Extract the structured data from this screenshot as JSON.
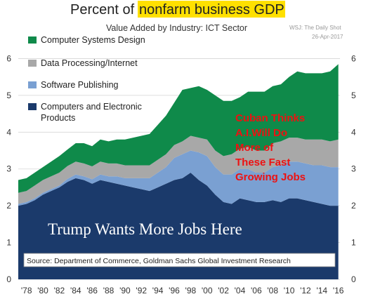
{
  "chart_data": {
    "type": "area",
    "stacked": true,
    "title_prefix": "Percent of",
    "title_highlight": "nonfarm business GDP",
    "subtitle": "Value Added by Industry: ICT Sector",
    "credit": [
      "WSJ: The Daily Shot",
      "26-Apr-2017"
    ],
    "x": [
      1977,
      1978,
      1979,
      1980,
      1981,
      1982,
      1983,
      1984,
      1985,
      1986,
      1987,
      1988,
      1989,
      1990,
      1991,
      1992,
      1993,
      1994,
      1995,
      1996,
      1997,
      1998,
      1999,
      2000,
      2001,
      2002,
      2003,
      2004,
      2005,
      2006,
      2007,
      2008,
      2009,
      2010,
      2011,
      2012,
      2013,
      2014,
      2015,
      2016
    ],
    "x_tick_labels": [
      "'78",
      "'80",
      "'82",
      "'84",
      "'86",
      "'88",
      "'90",
      "'92",
      "'94",
      "'96",
      "'98",
      "'00",
      "'02",
      "'04",
      "'06",
      "'08",
      "'10",
      "'12",
      "'14",
      "'16"
    ],
    "x_tick_values": [
      1978,
      1980,
      1982,
      1984,
      1986,
      1988,
      1990,
      1992,
      1994,
      1996,
      1998,
      2000,
      2002,
      2004,
      2006,
      2008,
      2010,
      2012,
      2014,
      2016
    ],
    "y_ticks": [
      "0",
      "1",
      "2",
      "3",
      "4",
      "5",
      "6"
    ],
    "ylim": [
      0,
      6.6
    ],
    "xlim": [
      1977,
      2016.2
    ],
    "series": [
      {
        "name": "Computers and Electronic Products",
        "color": "#1b3a6b",
        "values": [
          2.0,
          2.05,
          2.15,
          2.3,
          2.4,
          2.5,
          2.65,
          2.75,
          2.7,
          2.6,
          2.7,
          2.65,
          2.6,
          2.55,
          2.5,
          2.45,
          2.4,
          2.5,
          2.6,
          2.7,
          2.75,
          2.9,
          2.7,
          2.55,
          2.3,
          2.1,
          2.05,
          2.2,
          2.15,
          2.1,
          2.1,
          2.15,
          2.1,
          2.2,
          2.2,
          2.15,
          2.1,
          2.05,
          2.0,
          2.0
        ]
      },
      {
        "name": "Software Publishing",
        "color": "#7aa0d2",
        "values": [
          0.05,
          0.05,
          0.05,
          0.05,
          0.05,
          0.05,
          0.08,
          0.1,
          0.1,
          0.12,
          0.15,
          0.15,
          0.2,
          0.2,
          0.25,
          0.3,
          0.35,
          0.4,
          0.45,
          0.6,
          0.65,
          0.6,
          0.75,
          0.8,
          0.75,
          0.75,
          0.8,
          0.8,
          0.85,
          0.8,
          0.8,
          0.9,
          1.0,
          1.0,
          1.0,
          1.0,
          1.0,
          1.05,
          1.05,
          1.05
        ]
      },
      {
        "name": "Data Processing/Internet",
        "color": "#a8a8a8",
        "values": [
          0.3,
          0.3,
          0.35,
          0.35,
          0.35,
          0.35,
          0.35,
          0.35,
          0.35,
          0.35,
          0.35,
          0.35,
          0.35,
          0.35,
          0.35,
          0.35,
          0.35,
          0.35,
          0.35,
          0.35,
          0.35,
          0.4,
          0.4,
          0.45,
          0.45,
          0.5,
          0.55,
          0.55,
          0.6,
          0.6,
          0.6,
          0.65,
          0.65,
          0.65,
          0.65,
          0.65,
          0.7,
          0.7,
          0.7,
          0.75
        ]
      },
      {
        "name": "Computer Systems Design",
        "color": "#0f8a4a",
        "values": [
          0.35,
          0.35,
          0.35,
          0.35,
          0.4,
          0.45,
          0.45,
          0.5,
          0.55,
          0.55,
          0.6,
          0.6,
          0.65,
          0.7,
          0.75,
          0.8,
          0.85,
          0.95,
          1.05,
          1.15,
          1.4,
          1.3,
          1.4,
          1.35,
          1.5,
          1.5,
          1.45,
          1.4,
          1.5,
          1.6,
          1.6,
          1.55,
          1.55,
          1.65,
          1.8,
          1.8,
          1.8,
          1.8,
          1.9,
          2.05
        ]
      }
    ],
    "legend": [
      "Computer Systems Design",
      "Data Processing/Internet",
      "Software Publishing",
      "Computers and Electronic Products"
    ],
    "legend_colors": [
      "#0f8a4a",
      "#a8a8a8",
      "#7aa0d2",
      "#1b3a6b"
    ],
    "legend_lines": [
      [
        "Computer Systems Design"
      ],
      [
        "Data Processing/Internet"
      ],
      [
        "Software Publishing"
      ],
      [
        "Computers and Electronic",
        "Products"
      ]
    ],
    "annotation_lines": [
      "Cuban Thinks",
      "A.I.Will Do",
      "More of",
      "These Fast",
      "Growing Jobs"
    ],
    "caption": "Trump Wants More Jobs Here",
    "source": "Source: Department of Commerce, Goldman Sachs Global Investment Research",
    "highlight_color": "#ffe000"
  }
}
